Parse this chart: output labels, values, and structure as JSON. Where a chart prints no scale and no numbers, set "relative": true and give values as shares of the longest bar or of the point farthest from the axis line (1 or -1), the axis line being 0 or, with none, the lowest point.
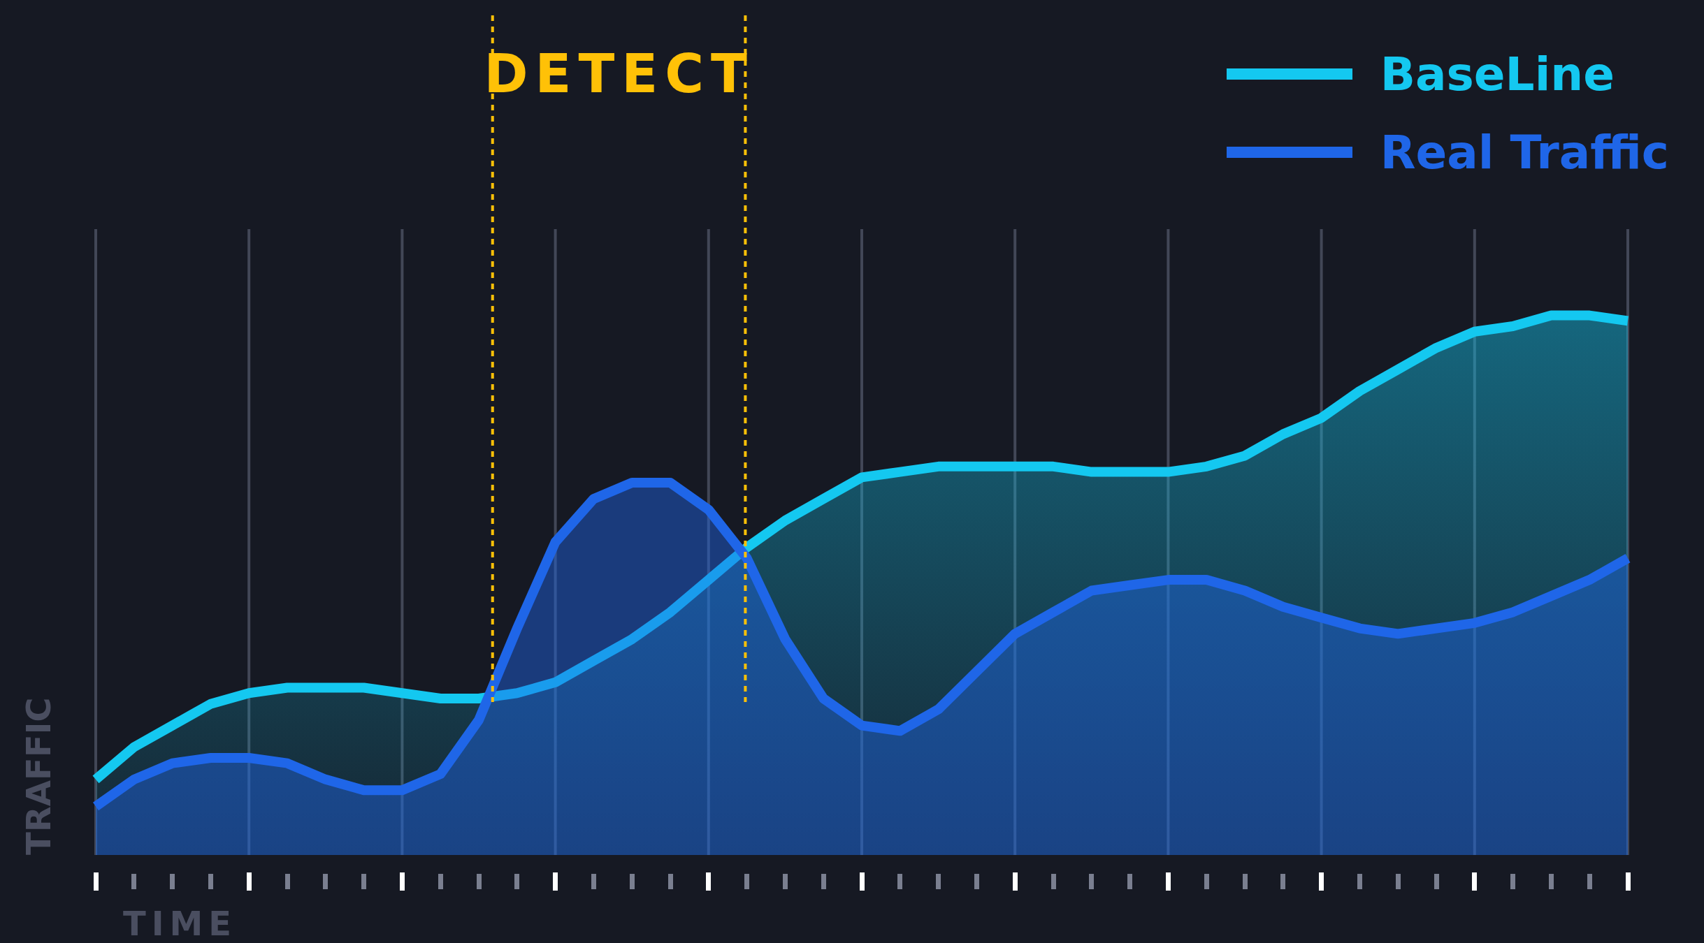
{
  "chart_data": {
    "type": "area",
    "relative": true,
    "xlabel": "TIME",
    "ylabel": "TRAFFIC",
    "categories": [
      null,
      null,
      null,
      null,
      null,
      null,
      null,
      null,
      null,
      null,
      null,
      null,
      null,
      null,
      null,
      null,
      null,
      null,
      null,
      null,
      null,
      null,
      null,
      null,
      null,
      null,
      null,
      null,
      null,
      null,
      null,
      null,
      null,
      null,
      null,
      null,
      null,
      null,
      null,
      null,
      null
    ],
    "grid": "x",
    "legend": "top right",
    "marker": "none",
    "line_style": "solid",
    "series": [
      {
        "name": "BaseLine",
        "color": "#14c8f0",
        "values": [
          0.14,
          0.2,
          0.24,
          0.28,
          0.3,
          0.31,
          0.31,
          0.31,
          0.3,
          0.29,
          0.29,
          0.3,
          0.32,
          0.36,
          0.4,
          0.45,
          0.51,
          0.57,
          0.62,
          0.66,
          0.7,
          0.71,
          0.72,
          0.72,
          0.72,
          0.72,
          0.71,
          0.71,
          0.71,
          0.72,
          0.74,
          0.78,
          0.81,
          0.86,
          0.9,
          0.94,
          0.97,
          0.98,
          1.0,
          1,
          0.99
        ]
      },
      {
        "name": "Real Traffic",
        "color": "#1f66e8",
        "values": [
          0.09,
          0.14,
          0.17,
          0.18,
          0.18,
          0.17,
          0.14,
          0.12,
          0.12,
          0.15,
          0.25,
          0.42,
          0.58,
          0.66,
          0.69,
          0.69,
          0.64,
          0.55,
          0.4,
          0.29,
          0.24,
          0.23,
          0.27,
          0.34,
          0.41,
          0.45,
          0.49,
          0.5,
          0.51,
          0.51,
          0.49,
          0.46,
          0.44,
          0.42,
          0.41,
          0.42,
          0.43,
          0.45,
          0.48,
          0.51,
          0.55
        ]
      }
    ],
    "annotations": [
      "DETECT"
    ]
  }
}
